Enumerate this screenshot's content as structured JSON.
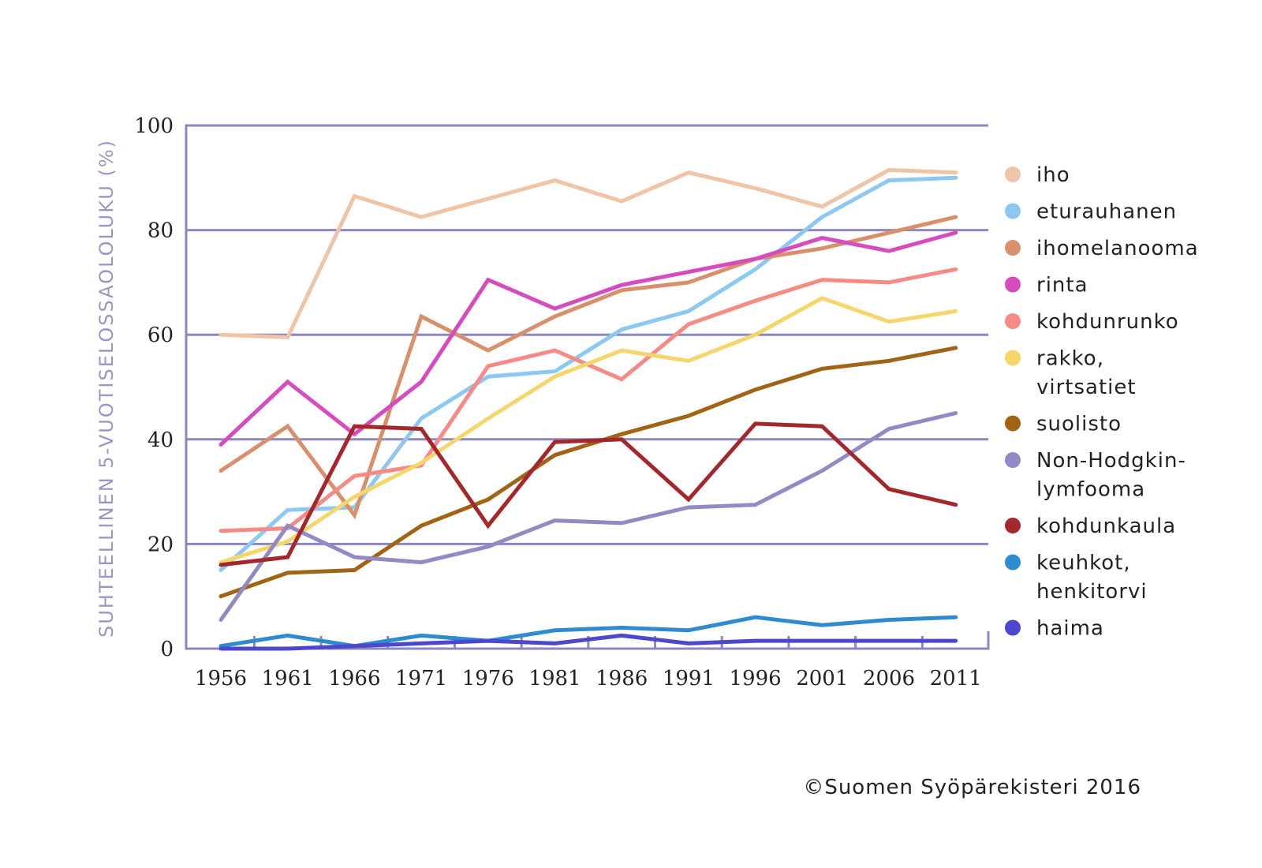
{
  "chart_data": {
    "type": "line",
    "title": "",
    "xlabel": "",
    "ylabel": "SUHTEELLINEN 5-VUOTISELOSSAOLOLUKU (%)",
    "ylim": [
      0,
      100
    ],
    "yticks": [
      "0",
      "20",
      "40",
      "60",
      "80",
      "100"
    ],
    "ytick_values": [
      0,
      20,
      40,
      60,
      80,
      100
    ],
    "x": [
      "1956",
      "1961",
      "1966",
      "1971",
      "1976",
      "1981",
      "1986",
      "1991",
      "1996",
      "2001",
      "2006",
      "2011"
    ],
    "grid": "horizontal",
    "legend_position": "right",
    "axis_color": "#8c87c0",
    "series": [
      {
        "name": "iho",
        "color": "#efc5a8",
        "values": [
          60,
          59.5,
          86.5,
          82.5,
          86,
          89.5,
          85.5,
          91,
          88,
          84.5,
          91.5,
          91
        ]
      },
      {
        "name": "eturauhanen",
        "color": "#8cc8f2",
        "values": [
          15,
          26.5,
          27,
          44,
          52,
          53,
          61,
          64.5,
          72.5,
          82.5,
          89.5,
          90
        ]
      },
      {
        "name": "ihomelanooma",
        "color": "#d8906a",
        "values": [
          34,
          42.5,
          25.5,
          63.5,
          57,
          63.5,
          68.5,
          70,
          74.5,
          76.5,
          79.5,
          82.5
        ]
      },
      {
        "name": "rinta",
        "color": "#d64bbd",
        "values": [
          39,
          51,
          41,
          51,
          70.5,
          65,
          69.5,
          72,
          74.5,
          78.5,
          76,
          79.5
        ]
      },
      {
        "name": "kohdunrunko",
        "color": "#f78a84",
        "values": [
          22.5,
          23,
          33,
          35,
          54,
          57,
          51.5,
          62,
          66.5,
          70.5,
          70,
          72.5
        ]
      },
      {
        "name": "rakko, virtsatiet",
        "color": "#f5d66a",
        "values": [
          16.5,
          20.5,
          29,
          35.5,
          44,
          52,
          57,
          55,
          60,
          67,
          62.5,
          64.5
        ]
      },
      {
        "name": "suolisto",
        "color": "#a06414",
        "values": [
          10,
          14.5,
          15,
          23.5,
          28.5,
          37,
          41,
          44.5,
          49.5,
          53.5,
          55,
          57.5
        ]
      },
      {
        "name": "Non-Hodgkin-lymfooma",
        "color": "#918ac4",
        "values": [
          5.5,
          23.5,
          17.5,
          16.5,
          19.5,
          24.5,
          24,
          27,
          27.5,
          34,
          42,
          45
        ]
      },
      {
        "name": "kohdunkaula",
        "color": "#a3272b",
        "values": [
          16,
          17.5,
          42.5,
          42,
          23.5,
          39.5,
          40,
          28.5,
          43,
          42.5,
          30.5,
          27.5
        ]
      },
      {
        "name": "keuhkot, henkitorvi",
        "color": "#2f8bd0",
        "values": [
          0.5,
          2.5,
          0.5,
          2.5,
          1.5,
          3.5,
          4,
          3.5,
          6,
          4.5,
          5.5,
          6
        ]
      },
      {
        "name": "haima",
        "color": "#4c47cc",
        "values": [
          0,
          0,
          0.5,
          1,
          1.5,
          1,
          2.5,
          1,
          1.5,
          1.5,
          1.5,
          1.5
        ]
      }
    ],
    "legend": [
      {
        "lines": [
          "iho"
        ]
      },
      {
        "lines": [
          "eturauhanen"
        ]
      },
      {
        "lines": [
          "ihomelanooma"
        ]
      },
      {
        "lines": [
          "rinta"
        ]
      },
      {
        "lines": [
          "kohdunrunko"
        ]
      },
      {
        "lines": [
          "rakko,",
          "virtsatiet"
        ]
      },
      {
        "lines": [
          "suolisto"
        ]
      },
      {
        "lines": [
          "Non-Hodgkin-",
          "lymfooma"
        ]
      },
      {
        "lines": [
          "kohdunkaula"
        ]
      },
      {
        "lines": [
          "keuhkot,",
          "henkitorvi"
        ]
      },
      {
        "lines": [
          "haima"
        ]
      }
    ]
  },
  "copyright": "©Suomen Syöpärekisteri 2016"
}
